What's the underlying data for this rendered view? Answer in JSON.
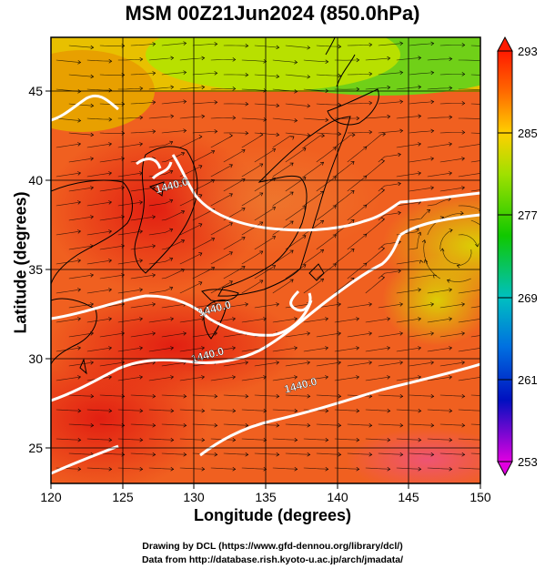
{
  "title": "MSM 00Z21Jun2024 (850.0hPa)",
  "axes": {
    "xlabel": "Longitude (degrees)",
    "ylabel": "Latitude  (degrees)",
    "xticks": [
      "120",
      "125",
      "130",
      "135",
      "140",
      "145",
      "150"
    ],
    "yticks": [
      "25",
      "30",
      "35",
      "40",
      "45"
    ],
    "xlim": [
      120,
      150
    ],
    "ylim": [
      23,
      48
    ]
  },
  "colorbar": {
    "ticks": [
      "293",
      "285",
      "277",
      "269",
      "261",
      "253"
    ],
    "range": [
      253,
      293
    ]
  },
  "contour_labels": [
    {
      "text": "1440.0",
      "lon": 128.5,
      "lat": 39.5
    },
    {
      "text": "1440.0",
      "lon": 131.5,
      "lat": 32.6
    },
    {
      "text": "1440.0",
      "lon": 131.0,
      "lat": 30.0
    },
    {
      "text": "1440.0",
      "lon": 137.5,
      "lat": 28.3
    }
  ],
  "credits": {
    "line1": "Drawing by DCL (https://www.gfd-dennou.org/library/dcl/)",
    "line2": "Data from http://database.rish.kyoto-u.ac.jp/arch/jmadata/"
  }
}
